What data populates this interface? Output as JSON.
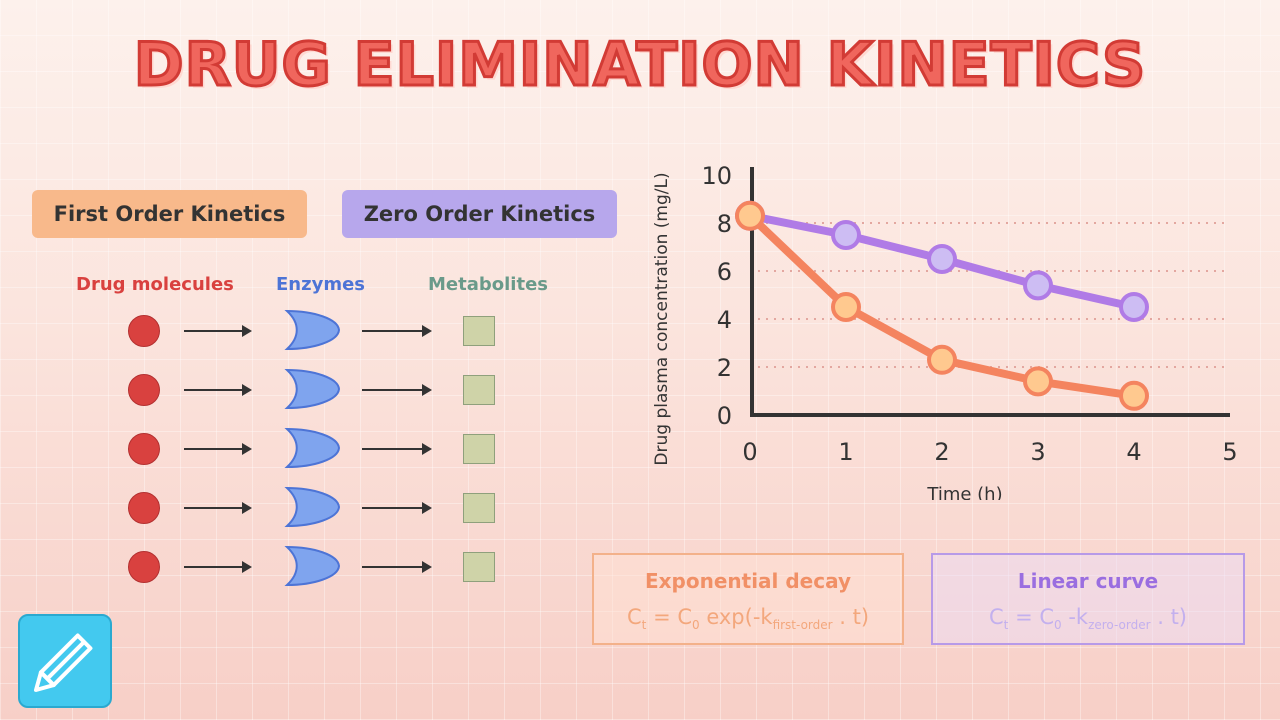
{
  "title": "DRUG ELIMINATION KINETICS",
  "tags": {
    "first": "First Order Kinetics",
    "zero": "Zero Order Kinetics"
  },
  "columns": {
    "drug": "Drug molecules",
    "enzymes": "Enzymes",
    "metabolites": "Metabolites"
  },
  "colors": {
    "drug": "#d9413f",
    "enzymes": "#4d74d6",
    "metabolites": "#6a9a8a",
    "first_order": "#f4845f",
    "zero_order": "#b07be6"
  },
  "rows": 5,
  "formulas": {
    "exponential": {
      "heading": "Exponential decay",
      "c": "C",
      "t": "t",
      "eq": "= C",
      "zero": "0",
      "rest": " exp(-k",
      "sub": "first-order",
      "tail": " . t)"
    },
    "linear": {
      "heading": "Linear curve",
      "c": "C",
      "t": "t",
      "eq": "= C",
      "zero": "0",
      "rest": " -k",
      "sub": "zero-order",
      "tail": " . t)"
    }
  },
  "chart_data": {
    "type": "line",
    "xlabel": "Time (h)",
    "ylabel": "Drug plasma concentration (mg/L)",
    "xlim": [
      0,
      5
    ],
    "ylim": [
      0,
      10
    ],
    "xticks": [
      0,
      1,
      2,
      3,
      4,
      5
    ],
    "yticks": [
      0,
      2,
      4,
      6,
      8,
      10
    ],
    "grid": "horizontal dotted",
    "series": [
      {
        "color": "#b07be6",
        "x": [
          0,
          1,
          2,
          3,
          4
        ],
        "y": [
          8.3,
          7.5,
          6.5,
          5.4,
          4.5
        ]
      },
      {
        "color": "#f4845f",
        "x": [
          0,
          1,
          2,
          3,
          4
        ],
        "y": [
          8.3,
          4.5,
          2.3,
          1.4,
          0.8
        ]
      }
    ]
  }
}
